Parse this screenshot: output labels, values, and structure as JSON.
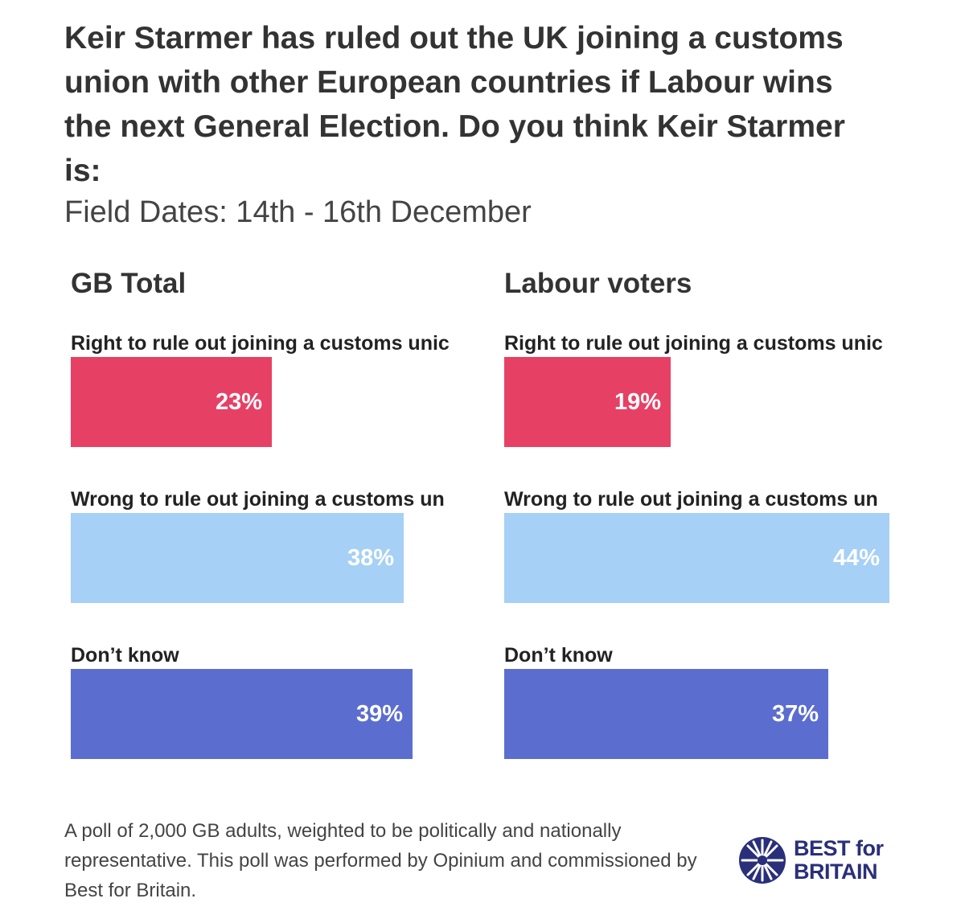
{
  "title": "Keir Starmer has ruled out the UK joining a customs union with other European countries if Labour wins the next General Election. Do you think Keir Starmer is:",
  "subtitle": "Field Dates: 14th - 16th December",
  "footnote": "A poll of 2,000 GB adults, weighted to be politically and nationally representative. This poll was performed by Opinium and commissioned by Best for Britain.",
  "logo": {
    "line1": "BEST for",
    "line2": "BRITAIN",
    "color": "#2a2f7a"
  },
  "colors": {
    "right": "#e64165",
    "wrong": "#a6d0f5",
    "dontknow": "#5b6ecf"
  },
  "chart_data": [
    {
      "type": "bar",
      "orientation": "horizontal",
      "title": "GB Total",
      "categories": [
        "Right to rule out joining a customs unic",
        "Wrong to rule out joining a customs un",
        "Don’t know"
      ],
      "values": [
        23,
        38,
        39
      ],
      "value_labels": [
        "23%",
        "38%",
        "39%"
      ],
      "unit": "%",
      "xlim": [
        0,
        45
      ]
    },
    {
      "type": "bar",
      "orientation": "horizontal",
      "title": "Labour voters",
      "categories": [
        "Right to rule out joining a customs unic",
        "Wrong to rule out joining a customs un",
        "Don’t know"
      ],
      "values": [
        19,
        44,
        37
      ],
      "value_labels": [
        "19%",
        "44%",
        "37%"
      ],
      "unit": "%",
      "xlim": [
        0,
        45
      ]
    }
  ]
}
